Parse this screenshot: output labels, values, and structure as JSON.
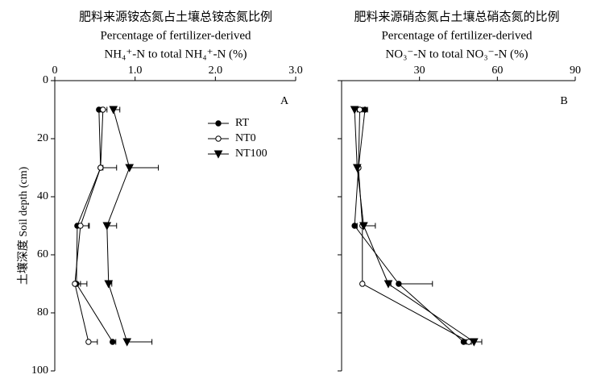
{
  "chart_data": [
    {
      "type": "line",
      "title": [
        "肥料来源铵态氮占土壤总铵态氮比例",
        "Percentage of fertilizer-derived",
        "NH₄⁺-N to total NH₄⁺-N (%)"
      ],
      "panel": "A",
      "y_label": "土壤深度 Soil depth (cm)",
      "y": [
        10,
        30,
        50,
        70,
        90
      ],
      "xlim": [
        0,
        3.0
      ],
      "xticks": [
        0,
        {
          "value": 1.0,
          "label": "1.0"
        },
        {
          "value": 2.0,
          "label": "2.0"
        },
        {
          "value": 3.0,
          "label": "3.0"
        }
      ],
      "ylim": [
        0,
        100
      ],
      "yticks": [
        0,
        20,
        40,
        60,
        80,
        100
      ],
      "legend": true,
      "series": [
        {
          "name": "RT",
          "marker": "filled-circle",
          "color": "#000000",
          "values": [
            0.55,
            0.57,
            0.28,
            0.27,
            0.72
          ],
          "errors": [
            0.03,
            0.2,
            0.15,
            0.05,
            0.04
          ]
        },
        {
          "name": "NT0",
          "marker": "open-circle",
          "color": "#000000",
          "values": [
            0.6,
            0.57,
            0.32,
            0.25,
            0.42
          ],
          "errors": [
            0.05,
            0.03,
            0.1,
            0.15,
            0.11
          ]
        },
        {
          "name": "NT100",
          "marker": "triangle-down",
          "color": "#000000",
          "values": [
            0.73,
            0.93,
            0.65,
            0.67,
            0.9
          ],
          "errors": [
            0.08,
            0.36,
            0.12,
            0.04,
            0.31
          ]
        }
      ]
    },
    {
      "type": "line",
      "title": [
        "肥料来源硝态氮占土壤总硝态氮的比例",
        "Percentage of fertilizer-derived",
        "NO₃⁻-N to total NO₃⁻-N (%)"
      ],
      "panel": "B",
      "y": [
        10,
        30,
        50,
        70,
        90
      ],
      "xlim": [
        0,
        90
      ],
      "xticks": [
        30,
        60,
        90
      ],
      "ylim": [
        0,
        100
      ],
      "yticks": [
        0,
        20,
        40,
        60,
        80,
        100
      ],
      "legend": false,
      "series": [
        {
          "name": "RT",
          "marker": "filled-circle",
          "color": "#000000",
          "values": [
            9,
            6.5,
            5,
            22,
            47
          ],
          "errors": [
            1,
            0.5,
            1,
            13,
            1
          ]
        },
        {
          "name": "NT0",
          "marker": "open-circle",
          "color": "#000000",
          "values": [
            7,
            6.5,
            8,
            8,
            49
          ],
          "errors": [
            1,
            0.5,
            0.5,
            0.5,
            1
          ]
        },
        {
          "name": "NT100",
          "marker": "triangle-down",
          "color": "#000000",
          "values": [
            5,
            6,
            8.5,
            18,
            51
          ],
          "errors": [
            1,
            0.5,
            4.5,
            1,
            3
          ]
        }
      ]
    }
  ]
}
